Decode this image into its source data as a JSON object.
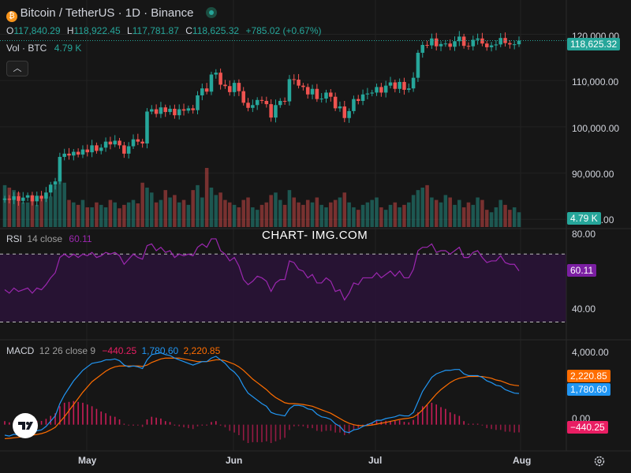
{
  "header": {
    "symbol": "Bitcoin / TetherUS · 1D · Binance",
    "open_label": "O",
    "open": "117,840.29",
    "high_label": "H",
    "high": "118,922.45",
    "low_label": "L",
    "low": "117,781.87",
    "close_label": "C",
    "close": "118,625.32",
    "change": "+785.02 (+0.67%)",
    "vol_label": "Vol · BTC",
    "vol_value": "4.79 K"
  },
  "watermark": "CHART- IMG.COM",
  "rsi": {
    "label": "RSI",
    "params": "14 close",
    "value": "60.11"
  },
  "macd": {
    "label": "MACD",
    "params": "12 26 close 9",
    "hist": "−440.25",
    "macd": "1,780.60",
    "signal": "2,220.85"
  },
  "price_axis": [
    "120,000.00",
    "110,000.00",
    "100,000.00",
    "90,000.00",
    "80,000.00"
  ],
  "rsi_axis": [
    "80.00",
    "40.00"
  ],
  "macd_axis": [
    "4,000.00",
    "0.00"
  ],
  "badges": {
    "price": "118,625.32",
    "volume": "4.79 K",
    "rsi": "60.11",
    "signal": "2,220.85",
    "macd": "1,780.60",
    "hist": "−440.25"
  },
  "x_labels": [
    "May",
    "Jun",
    "Jul",
    "Aug"
  ],
  "colors": {
    "up": "#26a69a",
    "down": "#ef5350",
    "rsi": "#9c27b0",
    "macd": "#2196f3",
    "signal": "#ff6d00",
    "hist": "#e91e63",
    "bg": "#161616"
  },
  "chart_data": {
    "type": "candlestick",
    "interval": "1D",
    "price_ylim": [
      78000,
      124000
    ],
    "rsi_ylim": [
      20,
      85
    ],
    "rsi_bands": [
      70,
      30
    ],
    "macd_ylim": [
      -1500,
      4800
    ],
    "closes": [
      84500,
      84200,
      85000,
      84000,
      84700,
      85200,
      83900,
      85100,
      84500,
      85800,
      87500,
      88200,
      93500,
      94200,
      93800,
      94600,
      94000,
      95100,
      94500,
      96000,
      94800,
      95500,
      96800,
      96200,
      97000,
      96000,
      94200,
      95800,
      97300,
      96800,
      96400,
      103300,
      103800,
      102800,
      104200,
      103200,
      103900,
      102500,
      103800,
      103500,
      104000,
      103600,
      106800,
      108300,
      107600,
      111300,
      111700,
      109100,
      108800,
      107500,
      109500,
      107700,
      105200,
      104100,
      104700,
      105800,
      105600,
      104900,
      102000,
      104700,
      105600,
      105500,
      110300,
      110200,
      108900,
      108600,
      107000,
      108200,
      106000,
      106100,
      107400,
      106500,
      104000,
      104400,
      101900,
      103400,
      106000,
      105600,
      107000,
      107200,
      107400,
      108600,
      107400,
      108900,
      109600,
      108200,
      109700,
      108000,
      108300,
      110600,
      116000,
      117700,
      117600,
      119100,
      117400,
      117900,
      118000,
      117300,
      118500,
      119500,
      117500,
      117400,
      118800,
      119100,
      118000,
      117200,
      117600,
      117800,
      119200,
      118100,
      117800,
      117840,
      118625
    ],
    "volumes": [
      0.85,
      0.8,
      0.75,
      0.7,
      0.5,
      0.5,
      0.55,
      0.45,
      0.6,
      0.65,
      0.62,
      0.85,
      1.0,
      0.9,
      0.55,
      0.5,
      0.45,
      0.55,
      0.4,
      0.4,
      0.5,
      0.45,
      0.4,
      0.55,
      0.5,
      0.38,
      0.45,
      0.5,
      0.55,
      0.48,
      0.9,
      0.8,
      0.7,
      0.5,
      0.55,
      0.75,
      0.6,
      0.65,
      0.5,
      0.55,
      0.45,
      0.75,
      0.85,
      0.6,
      1.2,
      0.8,
      0.65,
      0.7,
      0.55,
      0.5,
      0.45,
      0.4,
      0.55,
      0.6,
      0.4,
      0.35,
      0.45,
      0.5,
      0.65,
      0.7,
      0.55,
      0.45,
      0.75,
      0.6,
      0.5,
      0.45,
      0.55,
      0.5,
      0.6,
      0.45,
      0.4,
      0.5,
      0.55,
      0.6,
      0.7,
      0.5,
      0.4,
      0.35,
      0.45,
      0.5,
      0.55,
      0.6,
      0.4,
      0.35,
      0.45,
      0.5,
      0.4,
      0.45,
      0.5,
      0.65,
      0.75,
      0.8,
      0.85,
      0.6,
      0.55,
      0.5,
      0.65,
      0.6,
      0.45,
      0.55,
      0.4,
      0.5,
      0.45,
      0.6,
      0.55,
      0.35,
      0.3,
      0.4,
      0.55,
      0.45,
      0.35,
      0.4,
      0.3
    ],
    "rsi": [
      49,
      47,
      50,
      48,
      49,
      50,
      47,
      50,
      49,
      52,
      56,
      59,
      68,
      70,
      68,
      70,
      68,
      70,
      69,
      71,
      68,
      69,
      71,
      70,
      71,
      69,
      64,
      67,
      70,
      68,
      67,
      75,
      76,
      72,
      74,
      71,
      72,
      68,
      70,
      69,
      70,
      69,
      74,
      76,
      74,
      79,
      79,
      72,
      70,
      66,
      68,
      63,
      55,
      52,
      54,
      57,
      56,
      54,
      48,
      53,
      55,
      55,
      66,
      65,
      61,
      60,
      56,
      58,
      53,
      53,
      56,
      54,
      48,
      49,
      43,
      47,
      53,
      52,
      56,
      56,
      56,
      59,
      56,
      58,
      60,
      57,
      60,
      56,
      56,
      61,
      72,
      74,
      74,
      76,
      71,
      72,
      72,
      70,
      72,
      74,
      68,
      68,
      71,
      72,
      68,
      65,
      66,
      66,
      69,
      65,
      64,
      64,
      60.1
    ],
    "macd": [
      -600,
      -650,
      -550,
      -600,
      -500,
      -400,
      -500,
      -350,
      -300,
      -100,
      200,
      500,
      1200,
      1700,
      2100,
      2500,
      2800,
      3100,
      3300,
      3500,
      3550,
      3600,
      3700,
      3700,
      3750,
      3650,
      3400,
      3300,
      3350,
      3300,
      3200,
      3700,
      4000,
      4050,
      4100,
      4000,
      3950,
      3800,
      3700,
      3600,
      3500,
      3400,
      3500,
      3600,
      3600,
      3800,
      3900,
      3700,
      3500,
      3200,
      3000,
      2700,
      2200,
      1800,
      1600,
      1400,
      1200,
      1050,
      700,
      600,
      550,
      500,
      900,
      1100,
      1100,
      1050,
      900,
      850,
      600,
      450,
      400,
      300,
      50,
      -100,
      -400,
      -450,
      -300,
      -250,
      -100,
      0,
      100,
      250,
      250,
      350,
      400,
      450,
      550,
      500,
      500,
      700,
      1300,
      1900,
      2300,
      2700,
      2900,
      3000,
      3100,
      3100,
      3150,
      3150,
      2900,
      2800,
      2800,
      2800,
      2700,
      2500,
      2400,
      2250,
      2200,
      2000,
      1900,
      1800,
      1780.6
    ],
    "signal": [
      -800,
      -780,
      -750,
      -720,
      -680,
      -620,
      -600,
      -560,
      -510,
      -430,
      -300,
      -150,
      150,
      450,
      800,
      1150,
      1500,
      1850,
      2150,
      2450,
      2650,
      2850,
      3050,
      3200,
      3300,
      3350,
      3350,
      3350,
      3350,
      3350,
      3330,
      3400,
      3550,
      3650,
      3750,
      3800,
      3800,
      3800,
      3800,
      3750,
      3700,
      3650,
      3600,
      3600,
      3600,
      3650,
      3700,
      3700,
      3650,
      3550,
      3450,
      3300,
      3100,
      2850,
      2600,
      2400,
      2200,
      2000,
      1750,
      1550,
      1400,
      1250,
      1200,
      1200,
      1180,
      1150,
      1100,
      1050,
      950,
      850,
      750,
      650,
      500,
      350,
      200,
      80,
      0,
      -50,
      -60,
      -50,
      -20,
      30,
      80,
      130,
      190,
      240,
      300,
      340,
      370,
      430,
      600,
      850,
      1150,
      1450,
      1750,
      2000,
      2200,
      2400,
      2550,
      2650,
      2700,
      2750,
      2750,
      2750,
      2750,
      2700,
      2650,
      2550,
      2500,
      2400,
      2300,
      2250,
      2220.85
    ],
    "hist": [
      200,
      130,
      200,
      120,
      180,
      220,
      100,
      210,
      210,
      330,
      500,
      650,
      1050,
      1250,
      1300,
      1350,
      1300,
      1250,
      1150,
      1050,
      900,
      750,
      650,
      500,
      450,
      300,
      50,
      -50,
      0,
      -50,
      -130,
      300,
      450,
      400,
      350,
      200,
      150,
      0,
      -100,
      -150,
      -200,
      -250,
      -100,
      0,
      0,
      150,
      200,
      0,
      -150,
      -350,
      -450,
      -600,
      -900,
      -1050,
      -1000,
      -1000,
      -1000,
      -950,
      -1050,
      -950,
      -850,
      -750,
      -300,
      -100,
      -80,
      -100,
      -200,
      -200,
      -350,
      -400,
      -350,
      -350,
      -450,
      -450,
      -600,
      -530,
      -300,
      -200,
      -40,
      50,
      120,
      220,
      170,
      220,
      210,
      210,
      250,
      160,
      130,
      270,
      700,
      1050,
      1150,
      1250,
      1150,
      1000,
      900,
      700,
      600,
      500,
      200,
      50,
      50,
      50,
      -50,
      -200,
      -250,
      -300,
      -300,
      -400,
      -400,
      -450,
      -440.25
    ]
  }
}
